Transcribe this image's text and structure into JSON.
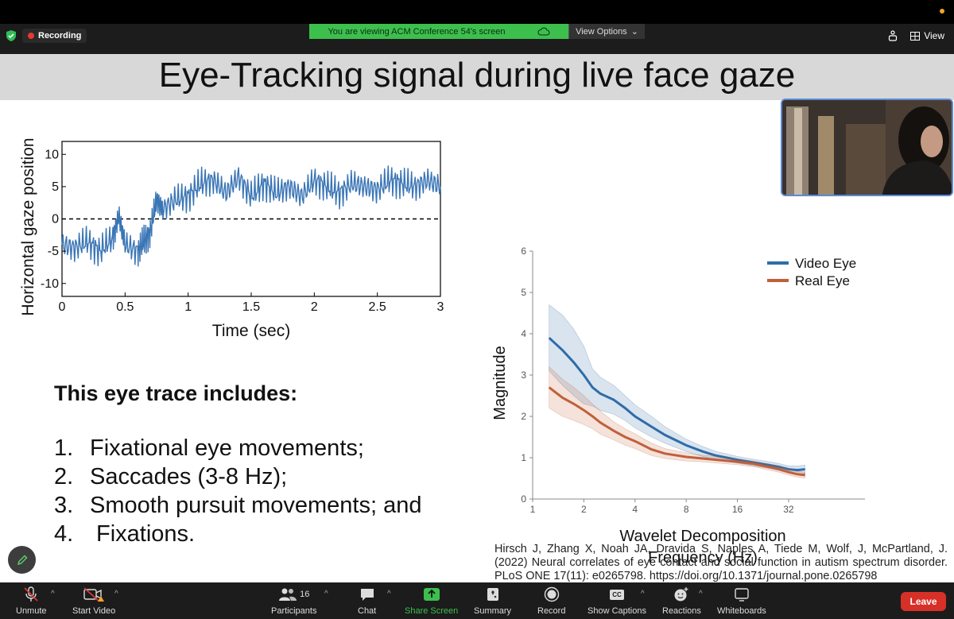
{
  "meeting": {
    "recording_label": "Recording",
    "viewing_banner": "You are viewing ACM Conference 54's screen",
    "view_options_label": "View Options",
    "view_label": "View",
    "colors": {
      "banner": "#3dbf4e",
      "recording": "#e53935",
      "leave": "#d73028"
    }
  },
  "slide": {
    "title": "Eye-Tracking signal during live face gaze",
    "includes_heading": "This eye trace includes:",
    "list": [
      {
        "num": "1.",
        "text": "Fixational eye movements;"
      },
      {
        "num": "2.",
        "text": "Saccades (3-8 Hz);"
      },
      {
        "num": "3.",
        "text": "Smooth pursuit movements; and"
      },
      {
        "num": "4.",
        "text": "Fixations."
      }
    ],
    "citation": "Hirsch J, Zhang X, Noah JA, Dravida S, Naples A, Tiede M, Wolf, J, McPartland, J. (2022) Neural correlates of eye contact and social function in autism spectrum disorder. PLoS ONE 17(11): e0265798. https://doi.org/10.1371/journal.pone.0265798"
  },
  "chart_data": [
    {
      "type": "line",
      "xlabel": "Time (sec)",
      "ylabel": "Horizontal gaze position",
      "xlim": [
        0,
        3
      ],
      "ylim": [
        -12,
        12
      ],
      "x_ticks": [
        "0",
        "0.5",
        "1",
        "1.5",
        "2",
        "2.5",
        "3"
      ],
      "y_ticks": [
        "10",
        "5",
        "0",
        "-5",
        "-10"
      ],
      "reference_line": {
        "y": 0,
        "style": "dashed"
      },
      "series": [
        {
          "color": "#3a75b5",
          "x": [
            0,
            0.1,
            0.2,
            0.3,
            0.4,
            0.45,
            0.5,
            0.6,
            0.65,
            0.7,
            0.75,
            0.8,
            0.9,
            1.0,
            1.1,
            1.2,
            1.3,
            1.4,
            1.5,
            1.6,
            1.7,
            1.8,
            1.9,
            2.0,
            2.1,
            2.2,
            2.3,
            2.4,
            2.5,
            2.6,
            2.7,
            2.8,
            2.9,
            3.0
          ],
          "y": [
            -4,
            -4.5,
            -3.5,
            -5,
            -3,
            0.5,
            -4,
            -5,
            -3.5,
            -2,
            3,
            1.5,
            3,
            3.5,
            5.5,
            6,
            4,
            6.5,
            3.5,
            5.5,
            4,
            5,
            3.5,
            6,
            5,
            4,
            5.5,
            5,
            4.5,
            6,
            5.5,
            5,
            6,
            5
          ]
        }
      ]
    },
    {
      "type": "line",
      "xlabel": "Wavelet Decomposition Frequency (Hz)",
      "ylabel": "Magnitude",
      "x_scale": "log2",
      "x_ticks": [
        "1",
        "2",
        "4",
        "8",
        "16",
        "32"
      ],
      "y_ticks": [
        "0",
        "1",
        "2",
        "3",
        "4",
        "5",
        "6"
      ],
      "ylim": [
        0,
        6
      ],
      "legend": "top-right",
      "x": [
        1.25,
        1.5,
        1.75,
        2,
        2.25,
        2.5,
        3,
        3.5,
        4,
        5,
        6,
        8,
        10,
        12,
        16,
        20,
        24,
        28,
        32,
        36,
        40
      ],
      "series": [
        {
          "name": "Video Eye",
          "color": "#2e6ca8",
          "values": [
            3.9,
            3.6,
            3.3,
            3.0,
            2.7,
            2.55,
            2.4,
            2.2,
            2.0,
            1.75,
            1.55,
            1.3,
            1.15,
            1.05,
            0.95,
            0.88,
            0.83,
            0.78,
            0.72,
            0.7,
            0.72
          ],
          "band": [
            0.8,
            0.85,
            0.8,
            0.7,
            0.45,
            0.4,
            0.35,
            0.3,
            0.28,
            0.25,
            0.2,
            0.15,
            0.12,
            0.1,
            0.08,
            0.08,
            0.08,
            0.08,
            0.08,
            0.1,
            0.1
          ]
        },
        {
          "name": "Real Eye",
          "color": "#c0603a",
          "values": [
            2.7,
            2.45,
            2.3,
            2.15,
            2.0,
            1.85,
            1.65,
            1.5,
            1.4,
            1.2,
            1.1,
            1.02,
            0.98,
            0.95,
            0.9,
            0.85,
            0.78,
            0.72,
            0.65,
            0.6,
            0.58
          ],
          "band": [
            0.5,
            0.45,
            0.4,
            0.35,
            0.3,
            0.28,
            0.22,
            0.2,
            0.18,
            0.15,
            0.12,
            0.1,
            0.08,
            0.08,
            0.07,
            0.07,
            0.07,
            0.07,
            0.07,
            0.07,
            0.07
          ]
        }
      ]
    }
  ],
  "toolbar": {
    "unmute": "Unmute",
    "start_video": "Start Video",
    "participants": "Participants",
    "participants_count": "16",
    "chat": "Chat",
    "share_screen": "Share Screen",
    "summary": "Summary",
    "record": "Record",
    "show_captions": "Show Captions",
    "captions_badge": "CC",
    "reactions": "Reactions",
    "whiteboards": "Whiteboards",
    "leave": "Leave"
  }
}
